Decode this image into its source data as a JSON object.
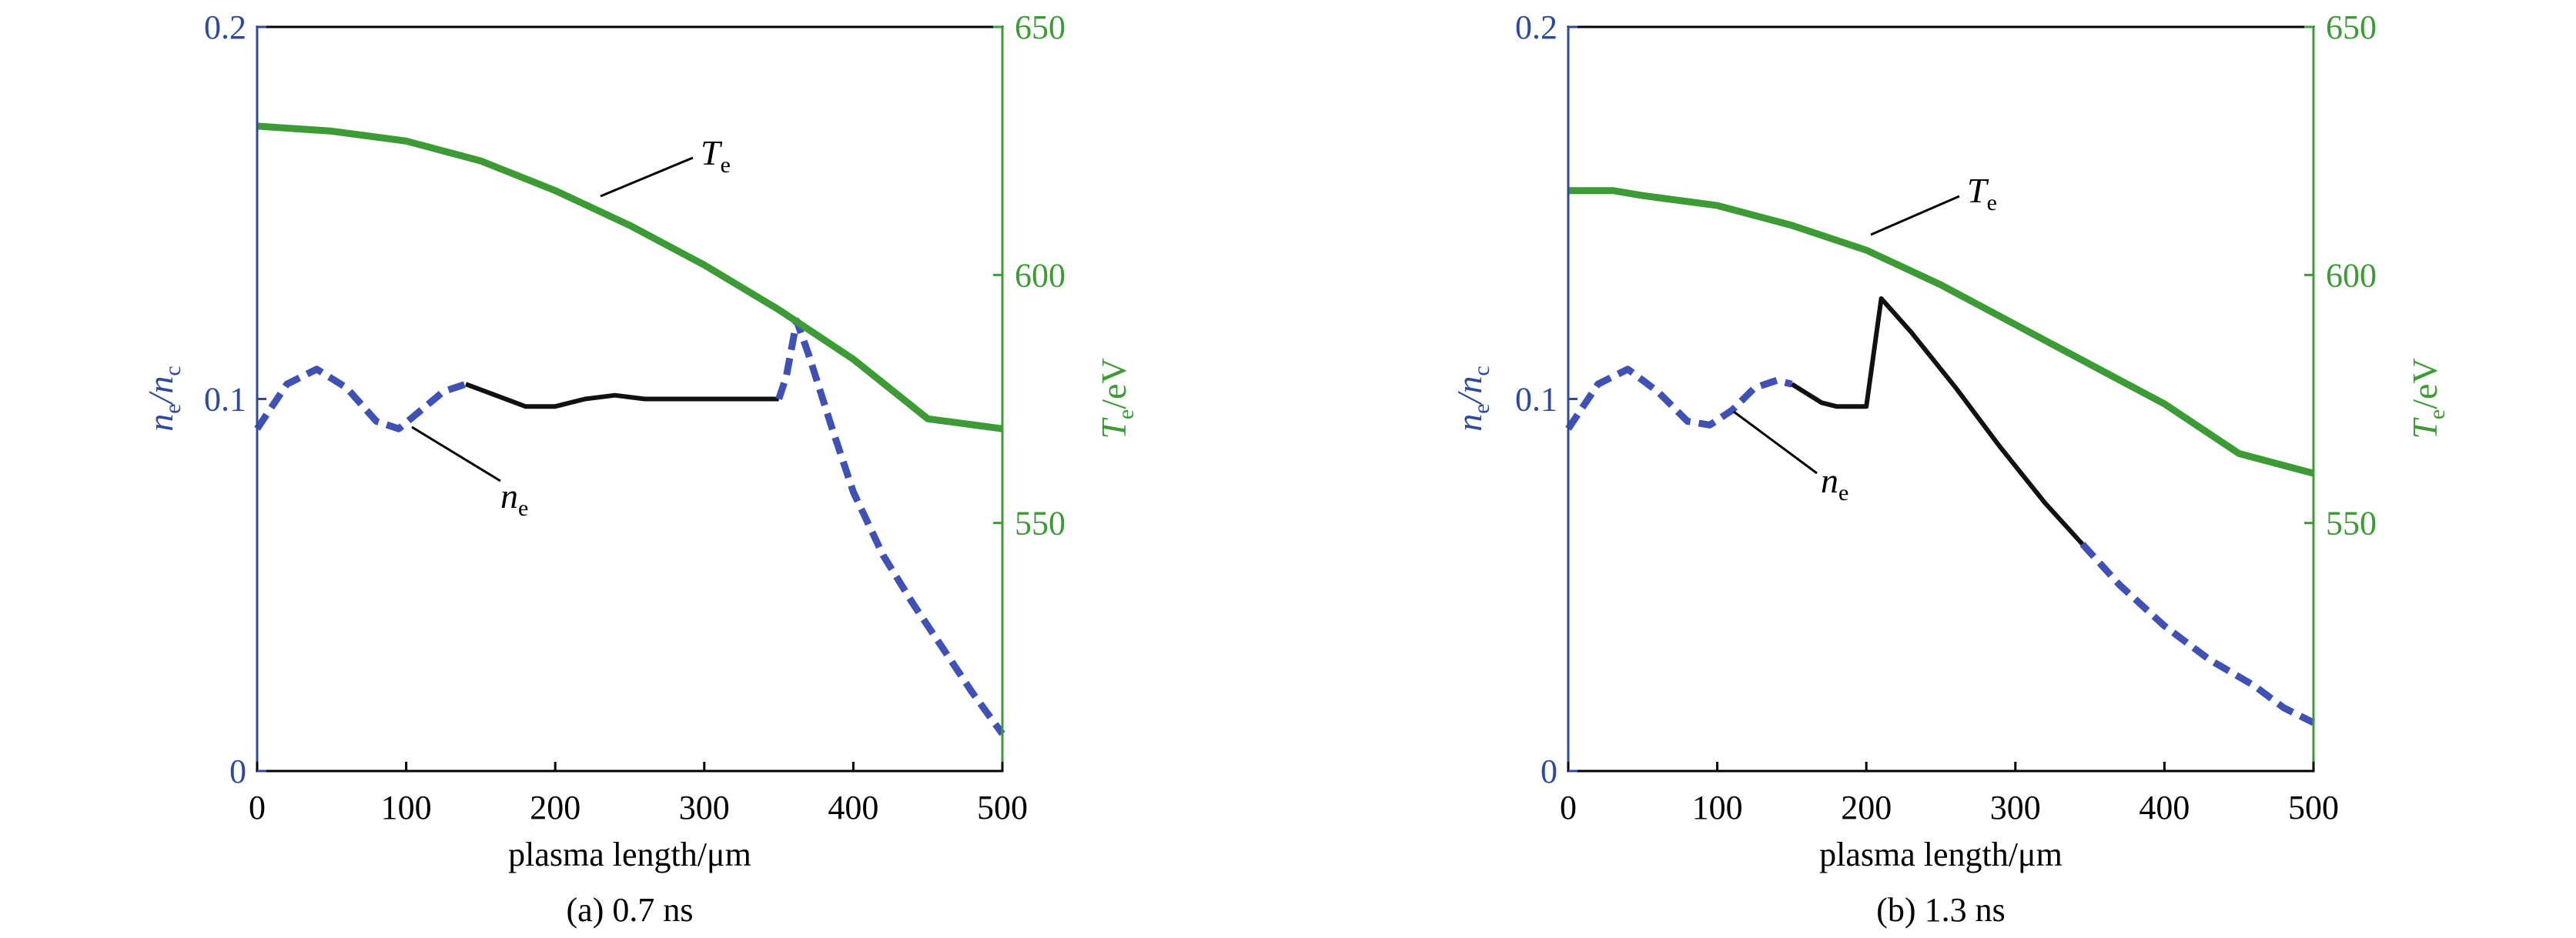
{
  "colors": {
    "left_axis": "#2E4A9E",
    "right_axis": "#3D9B35",
    "ne_line": "#3F51B5",
    "ne_solid": "#111111",
    "te_line": "#3D9B35",
    "frame": "#000000"
  },
  "chart_data": [
    {
      "type": "line",
      "caption": "(a) 0.7 ns",
      "xlabel": "plasma length/μm",
      "ylabel_left": {
        "main": "n",
        "sub1": "e",
        "slash": "/n",
        "sub2": "c"
      },
      "ylabel_right": {
        "main": "T",
        "sub": "e",
        "rest": "/eV"
      },
      "xlim": [
        0,
        500
      ],
      "xticks": [
        "0",
        "100",
        "200",
        "300",
        "400",
        "500"
      ],
      "ylim_left": [
        0,
        0.2
      ],
      "yticks_left": [
        "0",
        "0.1",
        "0.2"
      ],
      "ylim_right": [
        500,
        650
      ],
      "yticks_right": [
        "550",
        "600",
        "650"
      ],
      "annotations": [
        {
          "label": "T",
          "sub": "e",
          "series": "Te"
        },
        {
          "label": "n",
          "sub": "e",
          "series": "ne"
        }
      ],
      "series": [
        {
          "axis": "left",
          "style": "dashed",
          "x": [
            0,
            20,
            40,
            60,
            80,
            95,
            110,
            125,
            140
          ],
          "y": [
            0.092,
            0.104,
            0.108,
            0.103,
            0.094,
            0.092,
            0.097,
            0.102,
            0.104
          ]
        },
        {
          "axis": "left",
          "style": "solid",
          "x": [
            140,
            160,
            180,
            200,
            220,
            240,
            260,
            280,
            300,
            320,
            350
          ],
          "y": [
            0.104,
            0.101,
            0.098,
            0.098,
            0.1,
            0.101,
            0.1,
            0.1,
            0.1,
            0.1,
            0.1
          ]
        },
        {
          "axis": "left",
          "style": "dashed",
          "x": [
            350,
            355,
            362,
            370,
            385,
            400,
            420,
            440,
            460,
            480,
            500
          ],
          "y": [
            0.1,
            0.106,
            0.121,
            0.112,
            0.093,
            0.075,
            0.058,
            0.045,
            0.033,
            0.021,
            0.01
          ]
        },
        {
          "axis": "right",
          "style": "solid",
          "x": [
            0,
            50,
            100,
            150,
            200,
            250,
            300,
            350,
            400,
            450,
            500
          ],
          "y": [
            630,
            629,
            627,
            623,
            617,
            610,
            602,
            593,
            583,
            571,
            569
          ]
        }
      ]
    },
    {
      "type": "line",
      "caption": "(b) 1.3 ns",
      "xlabel": "plasma length/μm",
      "ylabel_left": {
        "main": "n",
        "sub1": "e",
        "slash": "/n",
        "sub2": "c"
      },
      "ylabel_right": {
        "main": "T",
        "sub": "e",
        "rest": "/eV"
      },
      "xlim": [
        0,
        500
      ],
      "xticks": [
        "0",
        "100",
        "200",
        "300",
        "400",
        "500"
      ],
      "ylim_left": [
        0,
        0.2
      ],
      "yticks_left": [
        "0",
        "0.1",
        "0.2"
      ],
      "ylim_right": [
        500,
        650
      ],
      "yticks_right": [
        "550",
        "600",
        "650"
      ],
      "annotations": [
        {
          "label": "T",
          "sub": "e",
          "series": "Te"
        },
        {
          "label": "n",
          "sub": "e",
          "series": "ne"
        }
      ],
      "series": [
        {
          "axis": "left",
          "style": "dashed",
          "x": [
            0,
            20,
            40,
            60,
            80,
            95,
            110,
            125,
            140,
            150
          ],
          "y": [
            0.092,
            0.104,
            0.108,
            0.102,
            0.094,
            0.093,
            0.097,
            0.103,
            0.105,
            0.104
          ]
        },
        {
          "axis": "left",
          "style": "solid",
          "x": [
            150,
            170,
            180,
            200,
            210,
            230,
            260,
            290,
            320,
            345
          ],
          "y": [
            0.104,
            0.099,
            0.098,
            0.098,
            0.127,
            0.118,
            0.103,
            0.087,
            0.072,
            0.061
          ]
        },
        {
          "axis": "left",
          "style": "dashed",
          "x": [
            345,
            370,
            400,
            430,
            460,
            480,
            500
          ],
          "y": [
            0.061,
            0.05,
            0.039,
            0.03,
            0.023,
            0.017,
            0.013
          ]
        },
        {
          "axis": "right",
          "style": "solid",
          "x": [
            0,
            30,
            50,
            100,
            150,
            200,
            250,
            300,
            350,
            400,
            450,
            500
          ],
          "y": [
            617,
            617,
            616,
            614,
            610,
            605,
            598,
            590,
            582,
            574,
            564,
            560
          ]
        }
      ]
    }
  ]
}
